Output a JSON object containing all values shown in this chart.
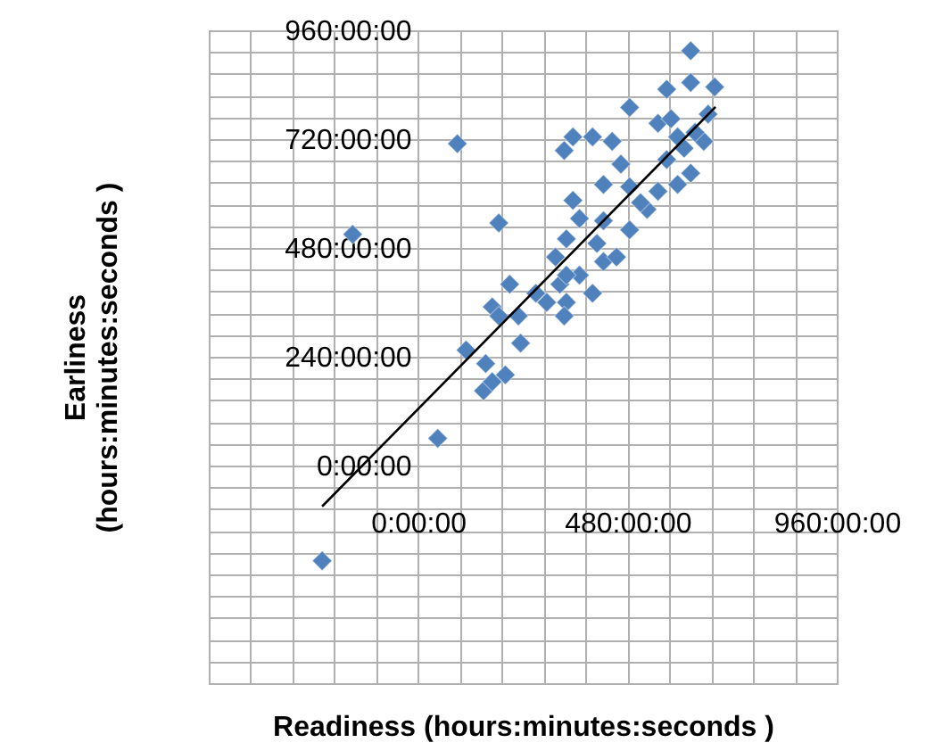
{
  "chart_data": {
    "type": "scatter",
    "xlabel": "Readiness (hours:minutes:seconds )",
    "ylabel": "Earliness\n(hours:minutes:seconds )",
    "xlim": [
      -480,
      960
    ],
    "ylim": [
      -480,
      960
    ],
    "xticks": [
      {
        "value": -480,
        "label": null
      },
      {
        "value": -384,
        "label": null
      },
      {
        "value": -288,
        "label": null
      },
      {
        "value": -192,
        "label": null
      },
      {
        "value": -96,
        "label": null
      },
      {
        "value": 0,
        "label": "0:00:00"
      },
      {
        "value": 96,
        "label": null
      },
      {
        "value": 192,
        "label": null
      },
      {
        "value": 288,
        "label": null
      },
      {
        "value": 384,
        "label": null
      },
      {
        "value": 480,
        "label": "480:00:00"
      },
      {
        "value": 576,
        "label": null
      },
      {
        "value": 672,
        "label": null
      },
      {
        "value": 768,
        "label": null
      },
      {
        "value": 864,
        "label": null
      },
      {
        "value": 960,
        "label": "960:00:00"
      }
    ],
    "yticks": [
      {
        "value": -480,
        "label": null
      },
      {
        "value": -432,
        "label": null
      },
      {
        "value": -384,
        "label": null
      },
      {
        "value": -336,
        "label": null
      },
      {
        "value": -288,
        "label": null
      },
      {
        "value": -240,
        "label": null
      },
      {
        "value": -192,
        "label": null
      },
      {
        "value": -144,
        "label": null
      },
      {
        "value": -96,
        "label": null
      },
      {
        "value": -48,
        "label": null
      },
      {
        "value": 0,
        "label": "0:00:00"
      },
      {
        "value": 48,
        "label": null
      },
      {
        "value": 96,
        "label": null
      },
      {
        "value": 144,
        "label": null
      },
      {
        "value": 192,
        "label": null
      },
      {
        "value": 240,
        "label": "240:00:00"
      },
      {
        "value": 288,
        "label": null
      },
      {
        "value": 336,
        "label": null
      },
      {
        "value": 384,
        "label": null
      },
      {
        "value": 432,
        "label": null
      },
      {
        "value": 480,
        "label": "480:00:00"
      },
      {
        "value": 528,
        "label": null
      },
      {
        "value": 576,
        "label": null
      },
      {
        "value": 624,
        "label": null
      },
      {
        "value": 672,
        "label": null
      },
      {
        "value": 720,
        "label": "720:00:00"
      },
      {
        "value": 768,
        "label": null
      },
      {
        "value": 816,
        "label": null
      },
      {
        "value": 864,
        "label": null
      },
      {
        "value": 912,
        "label": null
      },
      {
        "value": 960,
        "label": "960:00:00"
      }
    ],
    "grid": true,
    "marker": "diamond",
    "series": [
      {
        "color": "#4f81bd",
        "x": [
          -220,
          45,
          -150,
          90,
          185,
          625,
          110,
          155,
          235,
          150,
          200,
          170,
          210,
          170,
          285,
          340,
          355,
          400,
          445,
          335,
          485,
          570,
          625,
          680,
          550,
          580,
          665,
          465,
          425,
          355,
          485,
          370,
          425,
          485,
          340,
          315,
          410,
          425,
          370,
          325,
          400,
          455,
          525,
          550,
          595,
          625,
          570,
          610,
          655,
          635,
          595,
          510,
          295,
          270,
          340,
          185,
          230,
          335
        ],
        "values": [
          -210,
          60,
          510,
          710,
          535,
          915,
          255,
          225,
          270,
          165,
          200,
          185,
          400,
          350,
          null,
          360,
          725,
          725,
          715,
          695,
          790,
          830,
          845,
          835,
          755,
          765,
          775,
          665,
          620,
          585,
          615,
          545,
          540,
          520,
          500,
          460,
          490,
          450,
          420,
          400,
          380,
          460,
          565,
          605,
          620,
          645,
          675,
          700,
          715,
          735,
          725,
          580,
          360,
          380,
          420,
          330,
          330,
          330
        ]
      },
      {
        "type": "line",
        "marker": "none",
        "color": "#000000",
        "x": [
          -220,
          682
        ],
        "values": [
          -90,
          791
        ]
      }
    ]
  }
}
